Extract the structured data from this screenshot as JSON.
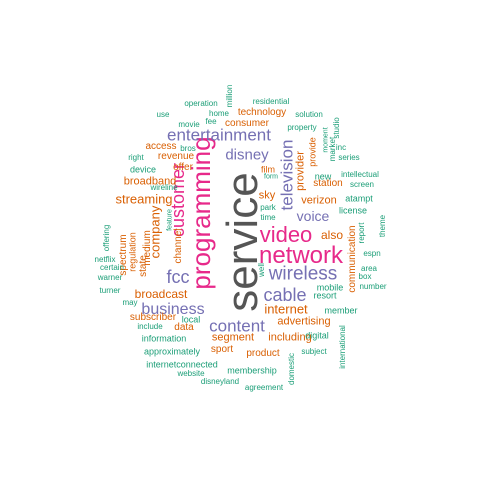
{
  "palette": {
    "gray": "#555555",
    "magenta": "#e7298a",
    "purple": "#7570b3",
    "orange": "#d95f02",
    "teal": "#1b9e77"
  },
  "words": [
    {
      "text": "service",
      "color": "gray"
    },
    {
      "text": "programming",
      "color": "magenta"
    },
    {
      "text": "network",
      "color": "magenta"
    },
    {
      "text": "video",
      "color": "magenta"
    },
    {
      "text": "customer",
      "color": "magenta"
    },
    {
      "text": "entertainment",
      "color": "purple"
    },
    {
      "text": "television",
      "color": "purple"
    },
    {
      "text": "wireless",
      "color": "purple"
    },
    {
      "text": "cable",
      "color": "purple"
    },
    {
      "text": "content",
      "color": "purple"
    },
    {
      "text": "business",
      "color": "purple"
    },
    {
      "text": "fcc",
      "color": "purple"
    },
    {
      "text": "disney",
      "color": "purple"
    },
    {
      "text": "voice",
      "color": "purple"
    },
    {
      "text": "company",
      "color": "orange"
    },
    {
      "text": "streaming",
      "color": "orange"
    },
    {
      "text": "broadcast",
      "color": "orange"
    },
    {
      "text": "internet",
      "color": "orange"
    },
    {
      "text": "advertising",
      "color": "orange"
    },
    {
      "text": "segment",
      "color": "orange"
    },
    {
      "text": "including",
      "color": "orange"
    },
    {
      "text": "verizon",
      "color": "orange"
    },
    {
      "text": "also",
      "color": "orange"
    },
    {
      "text": "provider",
      "color": "orange"
    },
    {
      "text": "broadband",
      "color": "orange"
    },
    {
      "text": "sky",
      "color": "orange"
    },
    {
      "text": "station",
      "color": "orange"
    },
    {
      "text": "consumer",
      "color": "orange"
    },
    {
      "text": "technology",
      "color": "orange"
    },
    {
      "text": "revenue",
      "color": "orange"
    },
    {
      "text": "offer",
      "color": "orange"
    },
    {
      "text": "access",
      "color": "orange"
    },
    {
      "text": "spectrum",
      "color": "orange"
    },
    {
      "text": "medium",
      "color": "orange"
    },
    {
      "text": "state",
      "color": "orange"
    },
    {
      "text": "subscriber",
      "color": "orange"
    },
    {
      "text": "data",
      "color": "orange"
    },
    {
      "text": "sport",
      "color": "orange"
    },
    {
      "text": "product",
      "color": "orange"
    },
    {
      "text": "communication",
      "color": "orange"
    },
    {
      "text": "channel",
      "color": "orange"
    },
    {
      "text": "regulation",
      "color": "orange"
    },
    {
      "text": "film",
      "color": "orange"
    },
    {
      "text": "provide",
      "color": "orange"
    },
    {
      "text": "information",
      "color": "teal"
    },
    {
      "text": "approximately",
      "color": "teal"
    },
    {
      "text": "internetconnected",
      "color": "teal"
    },
    {
      "text": "website",
      "color": "teal"
    },
    {
      "text": "disneyland",
      "color": "teal"
    },
    {
      "text": "membership",
      "color": "teal"
    },
    {
      "text": "agreement",
      "color": "teal"
    },
    {
      "text": "domestic",
      "color": "teal"
    },
    {
      "text": "subject",
      "color": "teal"
    },
    {
      "text": "digital",
      "color": "teal"
    },
    {
      "text": "member",
      "color": "teal"
    },
    {
      "text": "international",
      "color": "teal"
    },
    {
      "text": "resort",
      "color": "teal"
    },
    {
      "text": "mobile",
      "color": "teal"
    },
    {
      "text": "new",
      "color": "teal"
    },
    {
      "text": "local",
      "color": "teal"
    },
    {
      "text": "include",
      "color": "teal"
    },
    {
      "text": "may",
      "color": "teal"
    },
    {
      "text": "turner",
      "color": "teal"
    },
    {
      "text": "warner",
      "color": "teal"
    },
    {
      "text": "certain",
      "color": "teal"
    },
    {
      "text": "netflix",
      "color": "teal"
    },
    {
      "text": "offering",
      "color": "teal"
    },
    {
      "text": "feature",
      "color": "teal"
    },
    {
      "text": "wireline",
      "color": "teal"
    },
    {
      "text": "device",
      "color": "teal"
    },
    {
      "text": "right",
      "color": "teal"
    },
    {
      "text": "bros",
      "color": "teal"
    },
    {
      "text": "use",
      "color": "teal"
    },
    {
      "text": "movie",
      "color": "teal"
    },
    {
      "text": "fee",
      "color": "teal"
    },
    {
      "text": "home",
      "color": "teal"
    },
    {
      "text": "operation",
      "color": "teal"
    },
    {
      "text": "million",
      "color": "teal"
    },
    {
      "text": "residential",
      "color": "teal"
    },
    {
      "text": "solution",
      "color": "teal"
    },
    {
      "text": "property",
      "color": "teal"
    },
    {
      "text": "studio",
      "color": "teal"
    },
    {
      "text": "inc",
      "color": "teal"
    },
    {
      "text": "series",
      "color": "teal"
    },
    {
      "text": "market",
      "color": "teal"
    },
    {
      "text": "moment",
      "color": "teal"
    },
    {
      "text": "form",
      "color": "teal"
    },
    {
      "text": "intellectual",
      "color": "teal"
    },
    {
      "text": "screen",
      "color": "teal"
    },
    {
      "text": "atampt",
      "color": "teal"
    },
    {
      "text": "license",
      "color": "teal"
    },
    {
      "text": "report",
      "color": "teal"
    },
    {
      "text": "theme",
      "color": "teal"
    },
    {
      "text": "espn",
      "color": "teal"
    },
    {
      "text": "area",
      "color": "teal"
    },
    {
      "text": "box",
      "color": "teal"
    },
    {
      "text": "number",
      "color": "teal"
    },
    {
      "text": "park",
      "color": "teal"
    },
    {
      "text": "time",
      "color": "teal"
    },
    {
      "text": "well",
      "color": "teal"
    }
  ]
}
